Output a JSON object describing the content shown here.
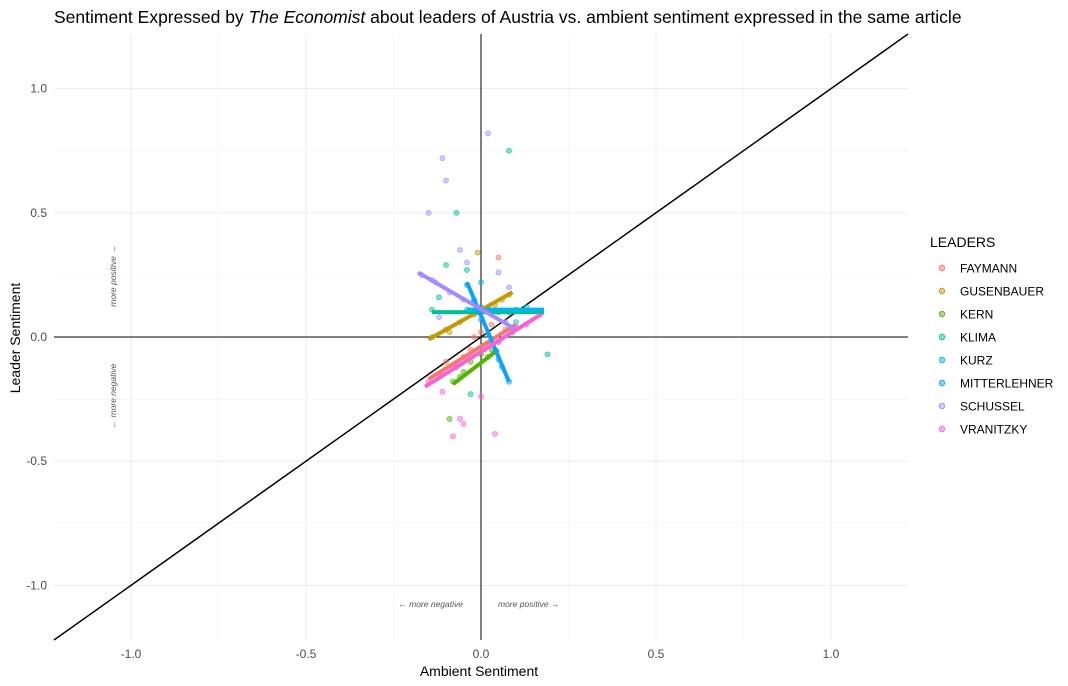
{
  "chart_data": {
    "type": "scatter",
    "title_parts": [
      "Sentiment Expressed by ",
      "The Economist",
      " about leaders of Austria vs. ambient sentiment expressed in the same article"
    ],
    "xlabel": "Ambient Sentiment",
    "ylabel": "Leader Sentiment",
    "xlim": [
      -1.22,
      1.22
    ],
    "ylim": [
      -1.22,
      1.22
    ],
    "x_ticks": [
      -1.0,
      -0.5,
      0.0,
      0.5,
      1.0
    ],
    "y_ticks": [
      -1.0,
      -0.5,
      0.0,
      0.5,
      1.0
    ],
    "x_tick_labels": [
      "-1.0",
      "-0.5",
      "0.0",
      "0.5",
      "1.0"
    ],
    "y_tick_labels": [
      "-1.0",
      "-0.5",
      "0.0",
      "0.5",
      "1.0"
    ],
    "grid": true,
    "reference_line": "y = x",
    "annotations": {
      "x_negative": "← more negative",
      "x_positive": "more positive →",
      "y_positive": "more positive →",
      "y_negative": "← more negative"
    },
    "legend": {
      "title": "LEADERS",
      "position": "right"
    },
    "series": [
      {
        "name": "FAYMANN",
        "color": "#F8766D",
        "fit": [
          [
            -0.15,
            -0.17
          ],
          [
            0.1,
            0.05
          ]
        ],
        "points": [
          [
            -0.12,
            -0.15
          ],
          [
            -0.08,
            -0.12
          ],
          [
            -0.05,
            -0.08
          ],
          [
            -0.03,
            -0.05
          ],
          [
            0.0,
            0.02
          ],
          [
            0.02,
            -0.03
          ],
          [
            0.05,
            -0.02
          ],
          [
            0.07,
            0.03
          ],
          [
            -0.1,
            -0.1
          ],
          [
            0.03,
            0.05
          ],
          [
            0.05,
            0.32
          ],
          [
            -0.02,
            0.0
          ]
        ]
      },
      {
        "name": "GUSENBAUER",
        "color": "#C49A00",
        "fit": [
          [
            -0.15,
            -0.01
          ],
          [
            0.09,
            0.18
          ]
        ],
        "points": [
          [
            -0.14,
            0.0
          ],
          [
            -0.1,
            0.03
          ],
          [
            -0.06,
            0.06
          ],
          [
            -0.02,
            0.09
          ],
          [
            0.02,
            0.12
          ],
          [
            0.06,
            0.15
          ],
          [
            0.08,
            0.17
          ],
          [
            -0.01,
            0.34
          ],
          [
            0.04,
            0.13
          ],
          [
            -0.09,
            0.02
          ]
        ]
      },
      {
        "name": "KERN",
        "color": "#53B400",
        "fit": [
          [
            -0.08,
            -0.19
          ],
          [
            0.05,
            -0.05
          ]
        ],
        "points": [
          [
            -0.08,
            -0.18
          ],
          [
            -0.05,
            -0.14
          ],
          [
            -0.03,
            -0.1
          ],
          [
            0.0,
            -0.07
          ],
          [
            0.03,
            -0.05
          ],
          [
            -0.09,
            -0.33
          ],
          [
            -0.06,
            -0.16
          ],
          [
            0.02,
            -0.08
          ]
        ]
      },
      {
        "name": "KLIMA",
        "color": "#00C094",
        "fit": [
          [
            -0.14,
            0.1
          ],
          [
            0.18,
            0.1
          ]
        ],
        "points": [
          [
            -0.14,
            0.11
          ],
          [
            -0.1,
            0.29
          ],
          [
            -0.07,
            0.5
          ],
          [
            0.08,
            0.75
          ],
          [
            -0.12,
            0.16
          ],
          [
            0.0,
            0.12
          ],
          [
            0.05,
            0.1
          ],
          [
            0.1,
            0.11
          ],
          [
            0.17,
            0.1
          ],
          [
            -0.04,
            0.27
          ],
          [
            0.19,
            -0.07
          ],
          [
            -0.03,
            -0.23
          ]
        ]
      },
      {
        "name": "KURZ",
        "color": "#00B6EB",
        "fit": [
          [
            -0.04,
            0.11
          ],
          [
            0.18,
            0.11
          ]
        ],
        "points": [
          [
            -0.04,
            0.11
          ],
          [
            0.02,
            0.11
          ],
          [
            0.08,
            0.1
          ],
          [
            0.13,
            0.12
          ],
          [
            0.17,
            0.1
          ],
          [
            0.0,
            0.22
          ],
          [
            -0.02,
            0.15
          ],
          [
            0.1,
            0.06
          ]
        ]
      },
      {
        "name": "MITTERLEHNER",
        "color": "#06A4FF",
        "fit": [
          [
            -0.04,
            0.22
          ],
          [
            0.08,
            -0.18
          ]
        ],
        "points": [
          [
            -0.04,
            0.21
          ],
          [
            -0.02,
            0.14
          ],
          [
            0.0,
            0.07
          ],
          [
            0.02,
            0.01
          ],
          [
            0.04,
            -0.06
          ],
          [
            0.06,
            -0.12
          ],
          [
            0.08,
            -0.18
          ],
          [
            -0.01,
            0.1
          ],
          [
            0.05,
            -0.09
          ]
        ]
      },
      {
        "name": "SCHUSSEL",
        "color": "#A58AFF",
        "fit": [
          [
            -0.18,
            0.26
          ],
          [
            0.1,
            0.03
          ]
        ],
        "points": [
          [
            -0.17,
            0.25
          ],
          [
            -0.13,
            0.22
          ],
          [
            -0.09,
            0.18
          ],
          [
            -0.05,
            0.15
          ],
          [
            -0.01,
            0.12
          ],
          [
            0.03,
            0.09
          ],
          [
            0.07,
            0.06
          ],
          [
            0.1,
            0.04
          ],
          [
            -0.1,
            0.63
          ],
          [
            -0.11,
            0.72
          ],
          [
            0.02,
            0.82
          ],
          [
            -0.15,
            0.5
          ],
          [
            -0.06,
            0.35
          ],
          [
            -0.14,
            0.23
          ],
          [
            0.05,
            0.26
          ],
          [
            0.08,
            0.2
          ],
          [
            -0.04,
            0.3
          ],
          [
            -0.12,
            0.08
          ]
        ]
      },
      {
        "name": "VRANITZKY",
        "color": "#FB61D7",
        "fit": [
          [
            -0.16,
            -0.2
          ],
          [
            0.17,
            0.09
          ]
        ],
        "points": [
          [
            -0.15,
            -0.18
          ],
          [
            -0.11,
            -0.15
          ],
          [
            -0.07,
            -0.12
          ],
          [
            -0.03,
            -0.08
          ],
          [
            0.01,
            -0.05
          ],
          [
            0.05,
            -0.02
          ],
          [
            0.09,
            0.02
          ],
          [
            0.13,
            0.05
          ],
          [
            0.17,
            0.09
          ],
          [
            -0.08,
            -0.4
          ],
          [
            -0.05,
            -0.35
          ],
          [
            0.04,
            -0.39
          ],
          [
            -0.06,
            -0.33
          ],
          [
            0.0,
            -0.24
          ],
          [
            -0.11,
            -0.22
          ]
        ]
      }
    ]
  }
}
